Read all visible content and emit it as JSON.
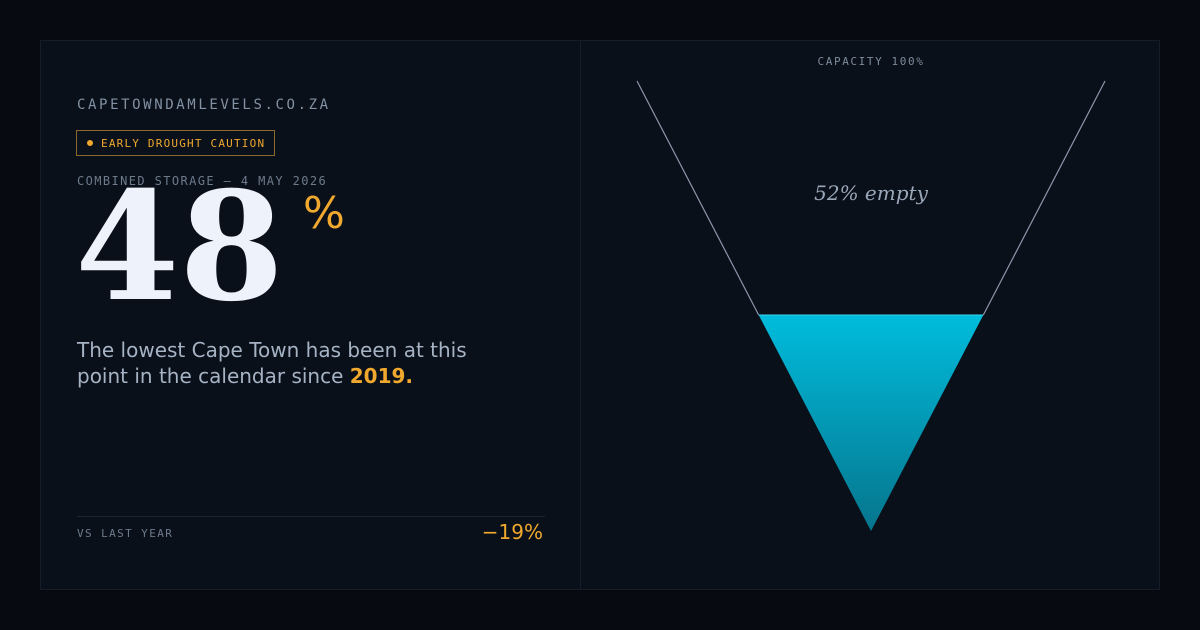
{
  "site": "CAPETOWNDAMLEVELS.CO.ZA",
  "badge": {
    "label": "EARLY DROUGHT CAUTION"
  },
  "storage": {
    "label": "COMBINED STORAGE — 4 MAY 2026",
    "value": "48",
    "unit": "%"
  },
  "description": {
    "text": "The lowest Cape Town has been at this point in the calendar since",
    "year": "2019."
  },
  "comparison": {
    "label": "VS LAST YEAR",
    "value": "−19%"
  },
  "gauge": {
    "capacity_label": "CAPACITY 100%",
    "empty_label": "52% empty",
    "fill_fraction": 0.48
  },
  "colors": {
    "accent": "#f0a82e",
    "water_top": "#00bcdc",
    "water_bottom": "#06758d",
    "outline": "#8d97ab"
  }
}
